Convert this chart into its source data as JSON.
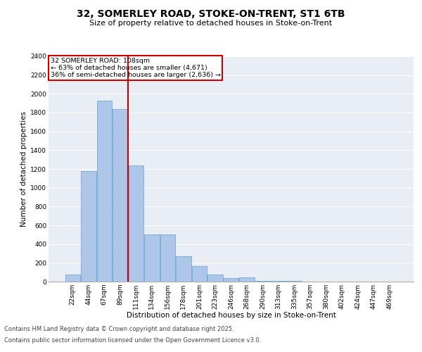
{
  "title1": "32, SOMERLEY ROAD, STOKE-ON-TRENT, ST1 6TB",
  "title2": "Size of property relative to detached houses in Stoke-on-Trent",
  "xlabel": "Distribution of detached houses by size in Stoke-on-Trent",
  "ylabel": "Number of detached properties",
  "categories": [
    "22sqm",
    "44sqm",
    "67sqm",
    "89sqm",
    "111sqm",
    "134sqm",
    "156sqm",
    "178sqm",
    "201sqm",
    "223sqm",
    "246sqm",
    "268sqm",
    "290sqm",
    "313sqm",
    "335sqm",
    "357sqm",
    "380sqm",
    "402sqm",
    "424sqm",
    "447sqm",
    "469sqm"
  ],
  "values": [
    75,
    1175,
    1930,
    1840,
    1240,
    500,
    500,
    270,
    165,
    75,
    35,
    45,
    10,
    5,
    5,
    3,
    3,
    3,
    2,
    2,
    2
  ],
  "bar_color": "#aec6e8",
  "bar_edge_color": "#5a9fd4",
  "vline_position": 3.5,
  "vline_color": "#cc0000",
  "annotation_text": "32 SOMERLEY ROAD: 108sqm\n← 63% of detached houses are smaller (4,671)\n36% of semi-detached houses are larger (2,636) →",
  "annotation_box_color": "#cc0000",
  "ylim": [
    0,
    2400
  ],
  "yticks": [
    0,
    200,
    400,
    600,
    800,
    1000,
    1200,
    1400,
    1600,
    1800,
    2000,
    2200,
    2400
  ],
  "footer1": "Contains HM Land Registry data © Crown copyright and database right 2025.",
  "footer2": "Contains public sector information licensed under the Open Government Licence v3.0.",
  "bg_color": "#e8eef4",
  "title1_fontsize": 10,
  "title2_fontsize": 8,
  "axis_label_fontsize": 7.5,
  "tick_fontsize": 6.5,
  "footer_fontsize": 6,
  "ann_fontsize": 6.8
}
